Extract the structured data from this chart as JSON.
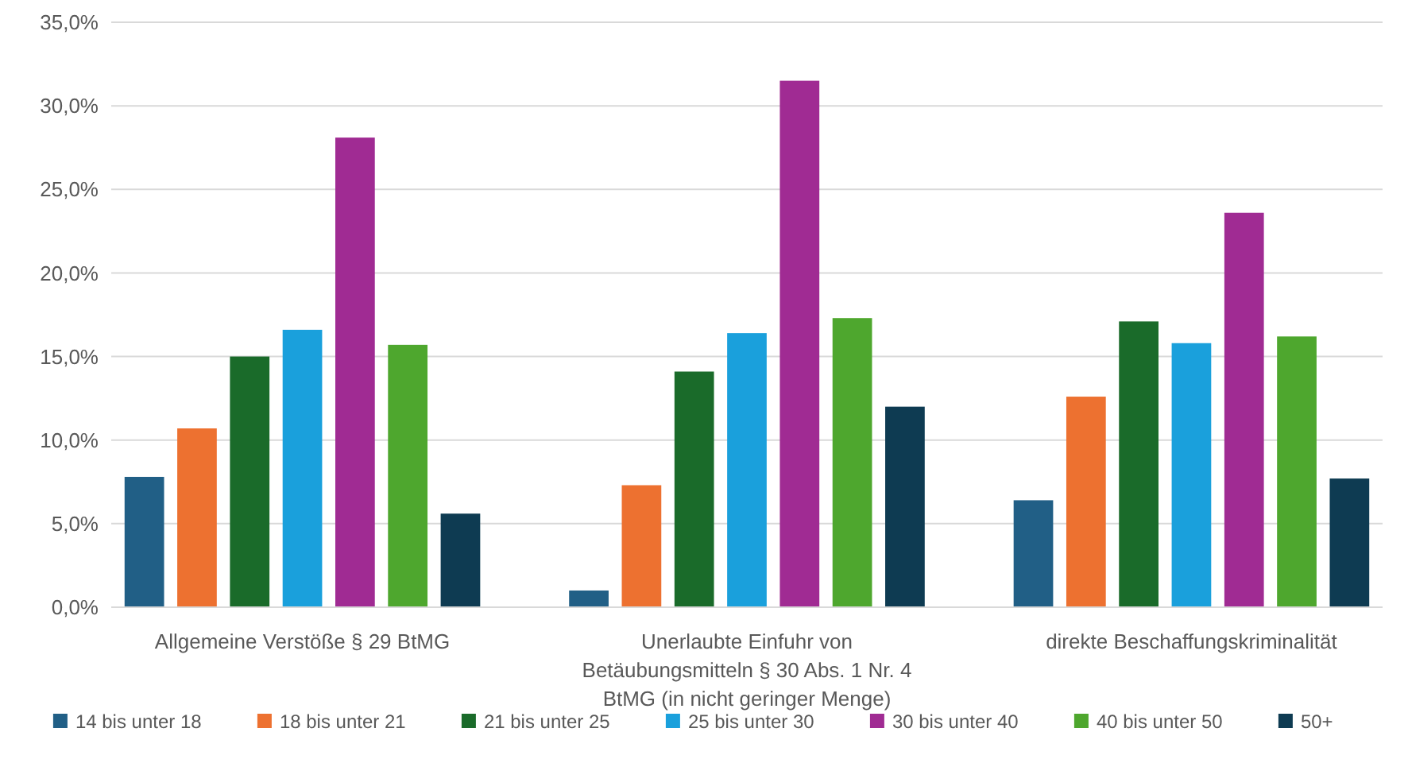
{
  "chart_data": {
    "type": "bar",
    "categories": [
      "Allgemeine Verstöße § 29 BtMG",
      "Unerlaubte Einfuhr von Betäubungsmitteln § 30 Abs. 1 Nr. 4 BtMG (in nicht geringer Menge)",
      "direkte Beschaffungskriminalität"
    ],
    "series": [
      {
        "name": "14 bis unter 18",
        "color": "#215f86",
        "values": [
          7.8,
          1.0,
          6.4
        ]
      },
      {
        "name": "18 bis unter 21",
        "color": "#ed7130",
        "values": [
          10.7,
          7.3,
          12.6
        ]
      },
      {
        "name": "21 bis unter 25",
        "color": "#1a6b2a",
        "values": [
          15.0,
          14.1,
          17.1
        ]
      },
      {
        "name": "25 bis unter 30",
        "color": "#1aa0dc",
        "values": [
          16.6,
          16.4,
          15.8
        ]
      },
      {
        "name": "30 bis unter 40",
        "color": "#a02b93",
        "values": [
          28.1,
          31.5,
          23.6
        ]
      },
      {
        "name": "40 bis unter 50",
        "color": "#4ea72e",
        "values": [
          15.7,
          17.3,
          16.2
        ]
      },
      {
        "name": "50+",
        "color": "#0e3b52",
        "values": [
          5.6,
          12.0,
          7.7
        ]
      }
    ],
    "ylim": [
      0,
      35
    ],
    "yticks": [
      {
        "value": 0,
        "label": "0,0%"
      },
      {
        "value": 5,
        "label": "5,0%"
      },
      {
        "value": 10,
        "label": "10,0%"
      },
      {
        "value": 15,
        "label": "15,0%"
      },
      {
        "value": 20,
        "label": "20,0%"
      },
      {
        "value": 25,
        "label": "25,0%"
      },
      {
        "value": 30,
        "label": "30,0%"
      },
      {
        "value": 35,
        "label": "35,0%"
      }
    ],
    "grid": "y",
    "legend": "bottom"
  }
}
